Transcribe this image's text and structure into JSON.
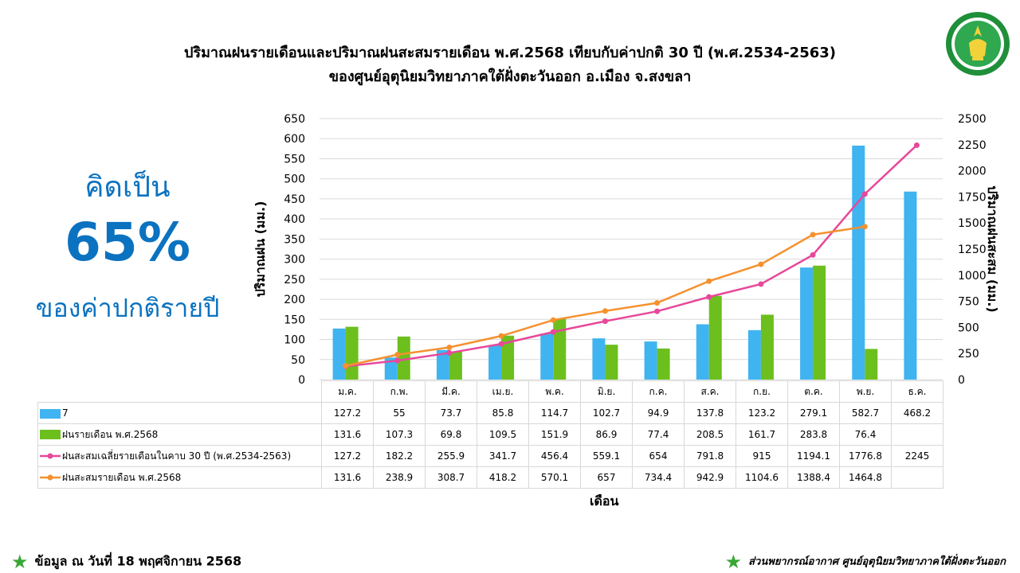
{
  "title_line1": "ปริมาณฝนรายเดือนและปริมาณฝนสะสมรายเดือน  พ.ศ.2568  เทียบกับค่าปกติ 30 ปี (พ.ศ.2534-2563)",
  "title_line2": "ของศูนย์อุตุนิยมวิทยาภาคใต้ฝั่งตะวันออก  อ.เมือง  จ.สงขลา",
  "logo_text": "กรมอุตุนิยมวิทยา METEOROLOGICAL DEPARTMENT",
  "callout": {
    "line1": "คิดเป็น",
    "line2": "65%",
    "line3": "ของค่าปกติรายปี"
  },
  "footer": {
    "left": "ข้อมูล ณ วันที่ 18 พฤศจิกายน 2568",
    "right": "ส่วนพยากรณ์อากาศ ศูนย์อุตุนิยมวิทยาภาคใต้ฝั่งตะวันออก"
  },
  "colors": {
    "bar_normal": "#3fb4f0",
    "bar_2568": "#6cbf1d",
    "line_normal_cum": "#e8489a",
    "line_2568_cum": "#f5912e",
    "callout": "#0b72c0",
    "star": "#3aa635"
  },
  "chart_data": {
    "type": "bar+line",
    "xlabel": "เดือน",
    "ylabel": "ปริมาณฝน (มม.)",
    "ylabel_right": "ปริมาณฝนสะสม (มม.)",
    "ylim": [
      0,
      650
    ],
    "yticks": [
      0,
      50,
      100,
      150,
      200,
      250,
      300,
      350,
      400,
      450,
      500,
      550,
      600,
      650
    ],
    "ylim_right": [
      0,
      2500
    ],
    "yticks_right": [
      0,
      250,
      500,
      750,
      1000,
      1250,
      1500,
      1750,
      2000,
      2250,
      2500
    ],
    "grid": true,
    "categories": [
      "ม.ค.",
      "ก.พ.",
      "มี.ค.",
      "เม.ย.",
      "พ.ค.",
      "มิ.ย.",
      "ก.ค.",
      "ส.ค.",
      "ก.ย.",
      "ต.ค.",
      "พ.ย.",
      "ธ.ค."
    ],
    "series": [
      {
        "name": "7",
        "kind": "bar",
        "axis": "left",
        "values": [
          127.2,
          55,
          73.7,
          85.8,
          114.7,
          102.7,
          94.9,
          137.8,
          123.2,
          279.1,
          582.7,
          468.2
        ]
      },
      {
        "name": "ฝนรายเดือน พ.ศ.2568",
        "kind": "bar",
        "axis": "left",
        "values": [
          131.6,
          107.3,
          69.8,
          109.5,
          151.9,
          86.9,
          77.4,
          208.5,
          161.7,
          283.8,
          76.4,
          null
        ]
      },
      {
        "name": "ฝนสะสมเฉลี่ยรายเดือนในคาบ 30 ปี (พ.ศ.2534-2563)",
        "kind": "line",
        "axis": "right",
        "values": [
          127.2,
          182.2,
          255.9,
          341.7,
          456.4,
          559.1,
          654,
          791.8,
          915,
          1194.1,
          1776.8,
          2245
        ]
      },
      {
        "name": "ฝนสะสมรายเดือน พ.ศ.2568",
        "kind": "line",
        "axis": "right",
        "values": [
          131.6,
          238.9,
          308.7,
          418.2,
          570.1,
          657,
          734.4,
          942.9,
          1104.6,
          1388.4,
          1464.8,
          null
        ]
      }
    ]
  }
}
